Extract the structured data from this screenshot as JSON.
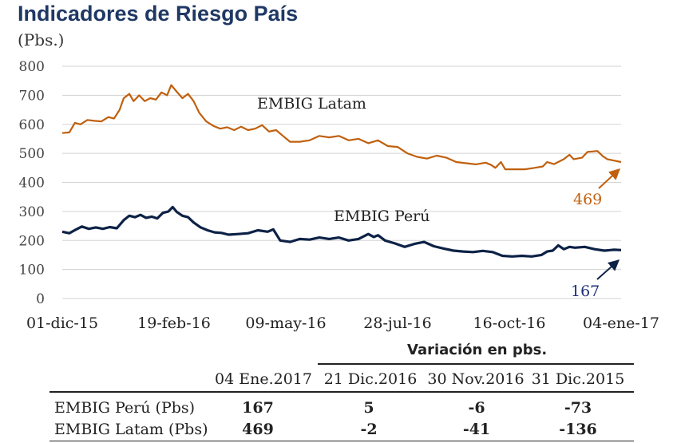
{
  "title": "Indicadores de Riesgo País",
  "unit": "(Pbs.)",
  "chart_data": {
    "type": "line",
    "x_tick_labels": [
      "01-dic-15",
      "19-feb-16",
      "09-may-16",
      "28-jul-16",
      "16-oct-16",
      "04-ene-17"
    ],
    "x_tick_dates": [
      "2015-12-01",
      "2016-02-19",
      "2016-05-09",
      "2016-07-28",
      "2016-10-16",
      "2017-01-04"
    ],
    "y_ticks": [
      0,
      100,
      200,
      300,
      400,
      500,
      600,
      700,
      800
    ],
    "ylim": [
      0,
      800
    ],
    "grid": "horizontal",
    "series": [
      {
        "name": "EMBIG Latam",
        "color": "#c0600e",
        "end_value": "469",
        "points": [
          [
            "2015-12-01",
            570
          ],
          [
            "2015-12-06",
            572
          ],
          [
            "2015-12-10",
            605
          ],
          [
            "2015-12-14",
            600
          ],
          [
            "2015-12-19",
            615
          ],
          [
            "2015-12-24",
            612
          ],
          [
            "2015-12-29",
            610
          ],
          [
            "2016-01-03",
            625
          ],
          [
            "2016-01-07",
            620
          ],
          [
            "2016-01-11",
            650
          ],
          [
            "2016-01-14",
            690
          ],
          [
            "2016-01-18",
            705
          ],
          [
            "2016-01-21",
            680
          ],
          [
            "2016-01-25",
            700
          ],
          [
            "2016-01-29",
            680
          ],
          [
            "2016-02-02",
            690
          ],
          [
            "2016-02-06",
            685
          ],
          [
            "2016-02-10",
            710
          ],
          [
            "2016-02-14",
            700
          ],
          [
            "2016-02-17",
            735
          ],
          [
            "2016-02-21",
            712
          ],
          [
            "2016-02-25",
            690
          ],
          [
            "2016-02-29",
            705
          ],
          [
            "2016-03-04",
            680
          ],
          [
            "2016-03-08",
            640
          ],
          [
            "2016-03-13",
            610
          ],
          [
            "2016-03-18",
            595
          ],
          [
            "2016-03-23",
            585
          ],
          [
            "2016-03-28",
            590
          ],
          [
            "2016-04-02",
            580
          ],
          [
            "2016-04-07",
            592
          ],
          [
            "2016-04-12",
            580
          ],
          [
            "2016-04-17",
            585
          ],
          [
            "2016-04-22",
            597
          ],
          [
            "2016-04-27",
            575
          ],
          [
            "2016-05-02",
            580
          ],
          [
            "2016-05-07",
            560
          ],
          [
            "2016-05-12",
            540
          ],
          [
            "2016-05-19",
            540
          ],
          [
            "2016-05-26",
            545
          ],
          [
            "2016-06-02",
            560
          ],
          [
            "2016-06-09",
            555
          ],
          [
            "2016-06-16",
            560
          ],
          [
            "2016-06-23",
            545
          ],
          [
            "2016-06-30",
            550
          ],
          [
            "2016-07-07",
            535
          ],
          [
            "2016-07-14",
            545
          ],
          [
            "2016-07-21",
            525
          ],
          [
            "2016-07-28",
            522
          ],
          [
            "2016-08-04",
            500
          ],
          [
            "2016-08-11",
            488
          ],
          [
            "2016-08-18",
            482
          ],
          [
            "2016-08-25",
            492
          ],
          [
            "2016-09-01",
            485
          ],
          [
            "2016-09-08",
            470
          ],
          [
            "2016-09-15",
            466
          ],
          [
            "2016-09-22",
            462
          ],
          [
            "2016-09-29",
            468
          ],
          [
            "2016-10-03",
            460
          ],
          [
            "2016-10-06",
            450
          ],
          [
            "2016-10-10",
            470
          ],
          [
            "2016-10-13",
            445
          ],
          [
            "2016-10-20",
            445
          ],
          [
            "2016-10-27",
            445
          ],
          [
            "2016-11-03",
            450
          ],
          [
            "2016-11-09",
            455
          ],
          [
            "2016-11-12",
            470
          ],
          [
            "2016-11-17",
            463
          ],
          [
            "2016-11-24",
            480
          ],
          [
            "2016-11-28",
            495
          ],
          [
            "2016-12-01",
            480
          ],
          [
            "2016-12-07",
            485
          ],
          [
            "2016-12-11",
            505
          ],
          [
            "2016-12-18",
            508
          ],
          [
            "2016-12-22",
            490
          ],
          [
            "2016-12-25",
            480
          ],
          [
            "2016-12-30",
            475
          ],
          [
            "2017-01-04",
            470
          ]
        ]
      },
      {
        "name": "EMBIG Perú",
        "color": "#0d2246",
        "end_value": "167",
        "points": [
          [
            "2015-12-01",
            230
          ],
          [
            "2015-12-06",
            225
          ],
          [
            "2015-12-11",
            238
          ],
          [
            "2015-12-15",
            248
          ],
          [
            "2015-12-20",
            240
          ],
          [
            "2015-12-25",
            245
          ],
          [
            "2015-12-30",
            240
          ],
          [
            "2016-01-04",
            246
          ],
          [
            "2016-01-09",
            242
          ],
          [
            "2016-01-14",
            270
          ],
          [
            "2016-01-18",
            285
          ],
          [
            "2016-01-22",
            280
          ],
          [
            "2016-01-26",
            288
          ],
          [
            "2016-01-30",
            278
          ],
          [
            "2016-02-03",
            282
          ],
          [
            "2016-02-07",
            276
          ],
          [
            "2016-02-11",
            295
          ],
          [
            "2016-02-15",
            300
          ],
          [
            "2016-02-18",
            315
          ],
          [
            "2016-02-21",
            298
          ],
          [
            "2016-02-25",
            285
          ],
          [
            "2016-02-29",
            280
          ],
          [
            "2016-03-04",
            262
          ],
          [
            "2016-03-09",
            245
          ],
          [
            "2016-03-14",
            235
          ],
          [
            "2016-03-19",
            228
          ],
          [
            "2016-03-24",
            226
          ],
          [
            "2016-03-29",
            220
          ],
          [
            "2016-04-05",
            222
          ],
          [
            "2016-04-12",
            225
          ],
          [
            "2016-04-19",
            235
          ],
          [
            "2016-04-26",
            230
          ],
          [
            "2016-04-30",
            238
          ],
          [
            "2016-05-05",
            200
          ],
          [
            "2016-05-12",
            195
          ],
          [
            "2016-05-19",
            205
          ],
          [
            "2016-05-26",
            203
          ],
          [
            "2016-06-02",
            210
          ],
          [
            "2016-06-09",
            205
          ],
          [
            "2016-06-16",
            210
          ],
          [
            "2016-06-23",
            200
          ],
          [
            "2016-06-30",
            205
          ],
          [
            "2016-07-07",
            222
          ],
          [
            "2016-07-11",
            212
          ],
          [
            "2016-07-14",
            218
          ],
          [
            "2016-07-19",
            200
          ],
          [
            "2016-07-26",
            190
          ],
          [
            "2016-08-02",
            178
          ],
          [
            "2016-08-09",
            188
          ],
          [
            "2016-08-16",
            195
          ],
          [
            "2016-08-23",
            180
          ],
          [
            "2016-08-30",
            172
          ],
          [
            "2016-09-06",
            165
          ],
          [
            "2016-09-13",
            162
          ],
          [
            "2016-09-20",
            160
          ],
          [
            "2016-09-27",
            164
          ],
          [
            "2016-10-04",
            160
          ],
          [
            "2016-10-11",
            147
          ],
          [
            "2016-10-18",
            145
          ],
          [
            "2016-10-25",
            147
          ],
          [
            "2016-11-01",
            145
          ],
          [
            "2016-11-08",
            150
          ],
          [
            "2016-11-12",
            162
          ],
          [
            "2016-11-16",
            165
          ],
          [
            "2016-11-20",
            183
          ],
          [
            "2016-11-24",
            170
          ],
          [
            "2016-11-28",
            178
          ],
          [
            "2016-12-02",
            175
          ],
          [
            "2016-12-09",
            178
          ],
          [
            "2016-12-16",
            170
          ],
          [
            "2016-12-23",
            165
          ],
          [
            "2016-12-30",
            168
          ],
          [
            "2017-01-04",
            167
          ]
        ]
      }
    ]
  },
  "table": {
    "group_header": "Variación en pbs.",
    "headers": [
      "04 Ene.2017",
      "21 Dic.2016",
      "30 Nov.2016",
      "31 Dic.2015"
    ],
    "rows": [
      {
        "label": "EMBIG Perú (Pbs)",
        "values": [
          "167",
          "5",
          "-6",
          "-73"
        ]
      },
      {
        "label": "EMBIG Latam (Pbs)",
        "values": [
          "469",
          "-2",
          "-41",
          "-136"
        ]
      }
    ]
  }
}
